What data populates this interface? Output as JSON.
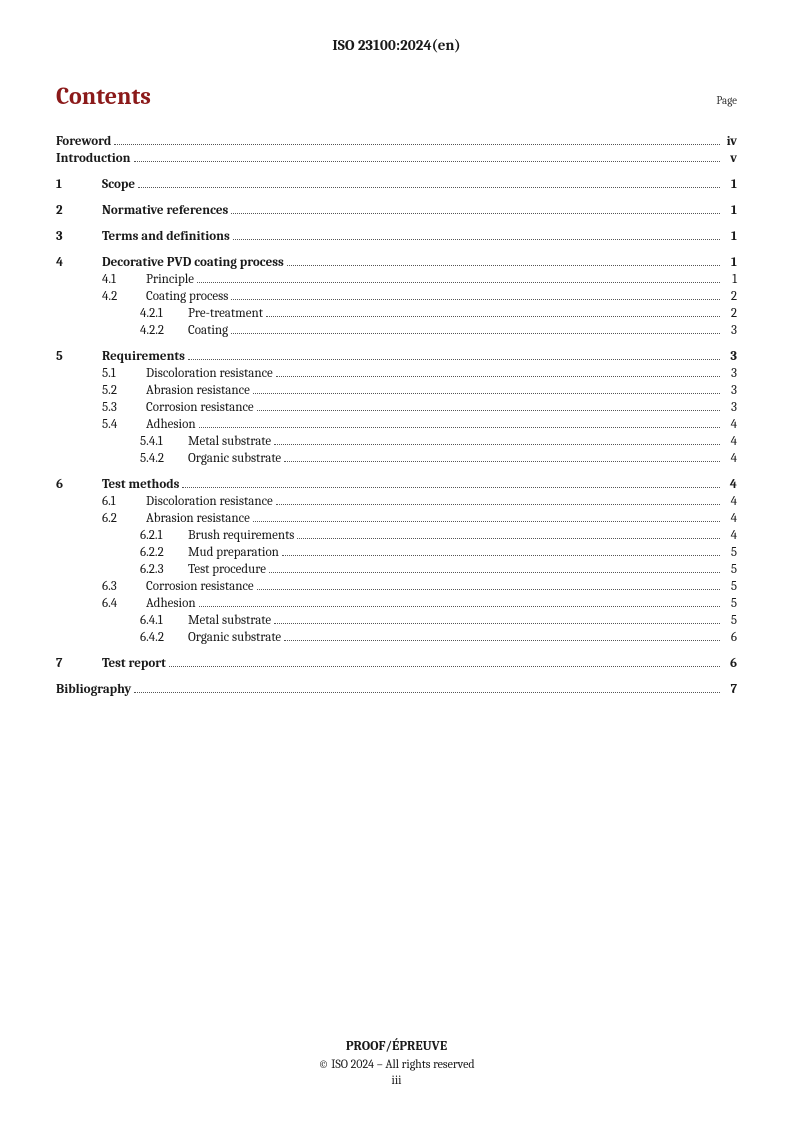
{
  "header": "ISO 23100:2024(en)",
  "title": "Contents",
  "page_label": "Page",
  "toc": [
    {
      "type": "plain",
      "bold": true,
      "label": "Foreword",
      "page": "iv"
    },
    {
      "type": "plain",
      "bold": true,
      "label": "Introduction",
      "page": "v",
      "gap_after": true
    },
    {
      "type": "major",
      "num": "1",
      "bold": true,
      "label": "Scope",
      "page": "1",
      "gap_after": true
    },
    {
      "type": "major",
      "num": "2",
      "bold": true,
      "label": "Normative references",
      "page": "1",
      "gap_after": true
    },
    {
      "type": "major",
      "num": "3",
      "bold": true,
      "label": "Terms and definitions",
      "page": "1",
      "gap_after": true
    },
    {
      "type": "major",
      "num": "4",
      "bold": true,
      "label": "Decorative PVD coating process",
      "page": "1"
    },
    {
      "type": "sub",
      "num": "4.1",
      "label": "Principle",
      "page": "1"
    },
    {
      "type": "sub",
      "num": "4.2",
      "label": "Coating process",
      "page": "2"
    },
    {
      "type": "subsub",
      "num": "4.2.1",
      "label": "Pre-treatment",
      "page": "2"
    },
    {
      "type": "subsub",
      "num": "4.2.2",
      "label": "Coating",
      "page": "3",
      "gap_after": true
    },
    {
      "type": "major",
      "num": "5",
      "bold": true,
      "label": "Requirements",
      "page": "3"
    },
    {
      "type": "sub",
      "num": "5.1",
      "label": "Discoloration resistance",
      "page": "3"
    },
    {
      "type": "sub",
      "num": "5.2",
      "label": "Abrasion resistance",
      "page": "3"
    },
    {
      "type": "sub",
      "num": "5.3",
      "label": "Corrosion resistance",
      "page": "3"
    },
    {
      "type": "sub",
      "num": "5.4",
      "label": "Adhesion",
      "page": "4"
    },
    {
      "type": "subsub",
      "num": "5.4.1",
      "label": "Metal substrate",
      "page": "4"
    },
    {
      "type": "subsub",
      "num": "5.4.2",
      "label": "Organic substrate",
      "page": "4",
      "gap_after": true
    },
    {
      "type": "major",
      "num": "6",
      "bold": true,
      "label": "Test methods",
      "page": "4"
    },
    {
      "type": "sub",
      "num": "6.1",
      "label": "Discoloration resistance",
      "page": "4"
    },
    {
      "type": "sub",
      "num": "6.2",
      "label": "Abrasion resistance",
      "page": "4"
    },
    {
      "type": "subsub",
      "num": "6.2.1",
      "label": "Brush requirements",
      "page": "4"
    },
    {
      "type": "subsub",
      "num": "6.2.2",
      "label": "Mud preparation",
      "page": "5"
    },
    {
      "type": "subsub",
      "num": "6.2.3",
      "label": "Test procedure",
      "page": "5"
    },
    {
      "type": "sub",
      "num": "6.3",
      "label": "Corrosion resistance",
      "page": "5"
    },
    {
      "type": "sub",
      "num": "6.4",
      "label": "Adhesion",
      "page": "5"
    },
    {
      "type": "subsub",
      "num": "6.4.1",
      "label": "Metal substrate",
      "page": "5"
    },
    {
      "type": "subsub",
      "num": "6.4.2",
      "label": "Organic substrate",
      "page": "6",
      "gap_after": true
    },
    {
      "type": "major",
      "num": "7",
      "bold": true,
      "label": "Test report",
      "page": "6",
      "gap_after": true
    },
    {
      "type": "plain",
      "bold": true,
      "label": "Bibliography",
      "page": "7"
    }
  ],
  "footer": {
    "proof": "PROOF/ÉPREUVE",
    "copyright": "© ISO 2024 – All rights reserved",
    "pagenum": "iii"
  }
}
